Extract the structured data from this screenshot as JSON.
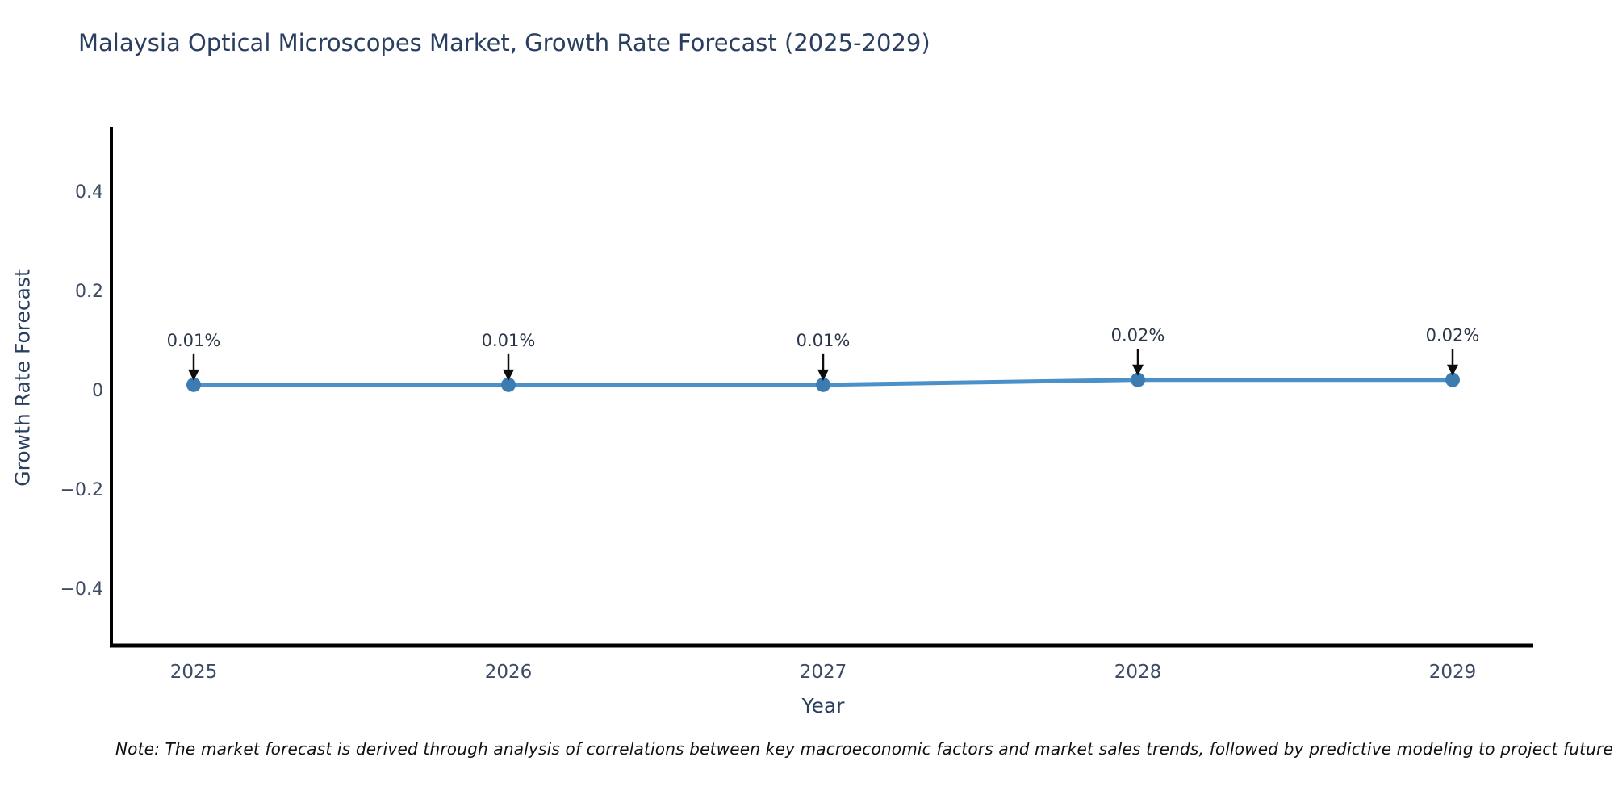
{
  "note": "Note: The market forecast is derived through analysis of correlations between key macroeconomic factors and market sales trends, followed by predictive modeling to project future sales",
  "chart_data": {
    "type": "line",
    "title": "Malaysia Optical Microscopes Market, Growth Rate Forecast (2025-2029)",
    "xlabel": "Year",
    "ylabel": "Growth Rate Forecast",
    "categories": [
      "2025",
      "2026",
      "2027",
      "2028",
      "2029"
    ],
    "series": [
      {
        "name": "Growth Rate Forecast",
        "values": [
          0.01,
          0.01,
          0.01,
          0.02,
          0.02
        ]
      }
    ],
    "annotations": [
      "0.01%",
      "0.01%",
      "0.01%",
      "0.02%",
      "0.02%"
    ],
    "yticks": [
      0.4,
      0.2,
      0,
      -0.2,
      -0.4
    ],
    "ylim": [
      -0.52,
      0.53
    ],
    "grid": false,
    "legend_position": "none",
    "line_color": "#4a90c9",
    "marker_color": "#3d7cb1",
    "arrow_color": "#0d0d0d",
    "axis_color": "#000000",
    "title_color": "#2a3f5f",
    "tick_color": "#3c4a63",
    "annotation_color": "#2b3648"
  }
}
